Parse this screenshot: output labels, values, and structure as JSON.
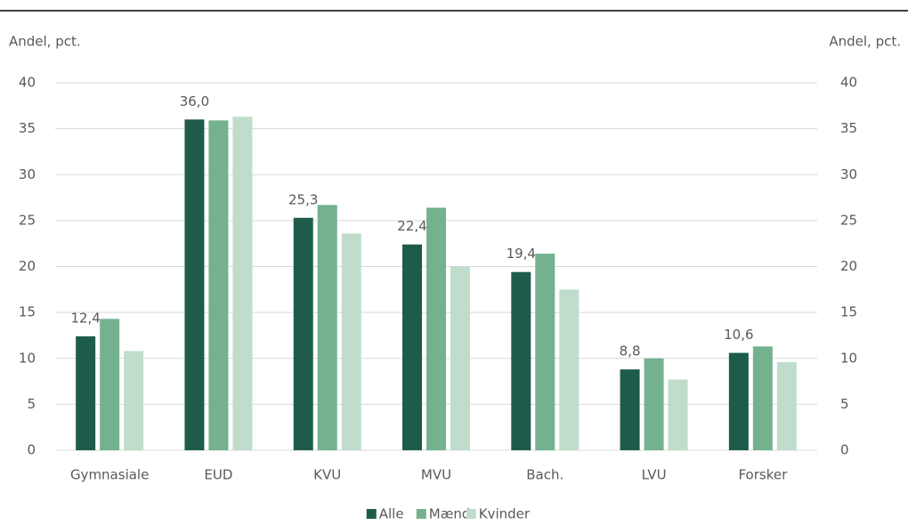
{
  "chart_data": {
    "type": "bar",
    "ylabel": "Andel, pct.",
    "y2label": "Andel, pct.",
    "categories": [
      "Gymnasiale",
      "EUD",
      "KVU",
      "MVU",
      "Bach.",
      "LVU",
      "Forsker"
    ],
    "series": [
      {
        "name": "Alle",
        "color": "#1f5b4a",
        "values": [
          12.4,
          36.0,
          25.3,
          22.4,
          19.4,
          8.8,
          10.6
        ],
        "value_labels": [
          "12,4",
          "36,0",
          "25,3",
          "22,4",
          "19,4",
          "8,8",
          "10,6"
        ]
      },
      {
        "name": "Mænd",
        "color": "#74b18f",
        "values": [
          14.3,
          35.9,
          26.7,
          26.4,
          21.4,
          10.0,
          11.3
        ]
      },
      {
        "name": "Kvinder",
        "color": "#c0ddcc",
        "values": [
          10.8,
          36.3,
          23.6,
          20.0,
          17.5,
          7.7,
          9.6
        ]
      }
    ],
    "ylim": [
      0,
      40
    ],
    "yticks": [
      0,
      5,
      10,
      15,
      20,
      25,
      30,
      35,
      40
    ],
    "y2lim": [
      0,
      40
    ],
    "y2ticks": [
      0,
      5,
      10,
      15,
      20,
      25,
      30,
      35,
      40
    ],
    "grid": true,
    "legend": "bottom"
  }
}
